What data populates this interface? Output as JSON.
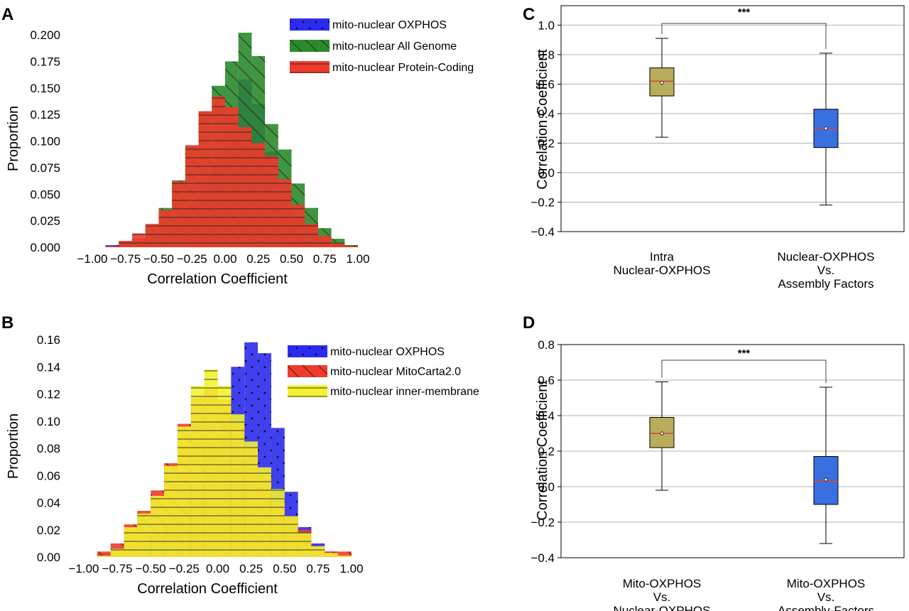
{
  "colors": {
    "oxphos": "#2b2bf0",
    "all_genome": "#2b8a2b",
    "protein_coding": "#f03a2b",
    "mitocarta": "#f03a2b",
    "inner_membrane": "#f2f230",
    "box_c": "#b8ad5a",
    "box_d": "#3a6fe0",
    "median": "#d2452a",
    "grid": "#b0b0b0"
  },
  "chart_data": [
    {
      "panel": "A",
      "type": "bar",
      "subtype": "histogram",
      "xlabel": "Correlation Coefficient",
      "ylabel": "Proportion",
      "xlim": [
        -1.0,
        1.0
      ],
      "ylim": [
        0.0,
        0.2
      ],
      "x_ticks": [
        "−1.00",
        "−0.75",
        "−0.50",
        "−0.25",
        "0.00",
        "0.25",
        "0.50",
        "0.75",
        "1.00"
      ],
      "y_ticks": [
        "0.000",
        "0.025",
        "0.050",
        "0.075",
        "0.100",
        "0.125",
        "0.150",
        "0.175",
        "0.200"
      ],
      "legend": [
        "mito-nuclear OXPHOS",
        "mito-nuclear All Genome",
        "mito-nuclear Protein-Coding"
      ],
      "series": [
        {
          "name": "mito-nuclear OXPHOS",
          "color_key": "oxphos",
          "hatch": "dots",
          "bin_start": -0.9,
          "bin_width": 0.1,
          "values": [
            0.002,
            0.005,
            0.005,
            0.01,
            0.018,
            0.025,
            0.04,
            0.055,
            0.08,
            0.125,
            0.158,
            0.135,
            0.09,
            0.05,
            0.028,
            0.015,
            0.01,
            0.005,
            0.002
          ]
        },
        {
          "name": "mito-nuclear All Genome",
          "color_key": "all_genome",
          "hatch": "diagonal",
          "bin_start": -0.9,
          "bin_width": 0.1,
          "values": [
            0.001,
            0.004,
            0.008,
            0.02,
            0.037,
            0.063,
            0.096,
            0.128,
            0.152,
            0.175,
            0.202,
            0.18,
            0.116,
            0.092,
            0.06,
            0.037,
            0.018,
            0.008,
            0.002
          ]
        },
        {
          "name": "mito-nuclear Protein-Coding",
          "color_key": "protein_coding",
          "hatch": "horizontal",
          "bin_start": -0.9,
          "bin_width": 0.1,
          "values": [
            0.001,
            0.006,
            0.013,
            0.022,
            0.035,
            0.062,
            0.096,
            0.128,
            0.142,
            0.132,
            0.113,
            0.098,
            0.086,
            0.064,
            0.04,
            0.022,
            0.011,
            0.004,
            0.001
          ]
        }
      ]
    },
    {
      "panel": "B",
      "type": "bar",
      "subtype": "histogram",
      "xlabel": "Correlation Coefficient",
      "ylabel": "Proportion",
      "xlim": [
        -1.0,
        1.0
      ],
      "ylim": [
        0.0,
        0.16
      ],
      "x_ticks": [
        "−1.00",
        "−0.75",
        "−0.50",
        "−0.25",
        "0.00",
        "0.25",
        "0.50",
        "0.75",
        "1.00"
      ],
      "y_ticks": [
        "0.00",
        "0.02",
        "0.04",
        "0.06",
        "0.08",
        "0.10",
        "0.12",
        "0.14",
        "0.16"
      ],
      "legend": [
        "mito-nuclear OXPHOS",
        "mito-nuclear MitoCarta2.0",
        "mito-nuclear inner-membrane"
      ],
      "series": [
        {
          "name": "mito-nuclear OXPHOS",
          "color_key": "oxphos",
          "hatch": "dots",
          "bin_start": -0.9,
          "bin_width": 0.1,
          "values": [
            0.002,
            0.004,
            0.006,
            0.01,
            0.016,
            0.024,
            0.036,
            0.052,
            0.08,
            0.102,
            0.14,
            0.158,
            0.15,
            0.095,
            0.048,
            0.022,
            0.01,
            0.004,
            0.001
          ]
        },
        {
          "name": "mito-nuclear MitoCarta2.0",
          "color_key": "mitocarta",
          "hatch": "diagonal",
          "bin_start": -0.9,
          "bin_width": 0.1,
          "values": [
            0.004,
            0.01,
            0.024,
            0.034,
            0.049,
            0.069,
            0.098,
            0.117,
            0.124,
            0.116,
            0.098,
            0.08,
            0.06,
            0.04,
            0.03,
            0.02,
            0.008,
            0.004,
            0.004
          ]
        },
        {
          "name": "mito-nuclear inner-membrane",
          "color_key": "inner_membrane",
          "hatch": "horizontal",
          "bin_start": -0.9,
          "bin_width": 0.1,
          "values": [
            0.001,
            0.006,
            0.022,
            0.032,
            0.045,
            0.067,
            0.096,
            0.126,
            0.138,
            0.126,
            0.105,
            0.085,
            0.066,
            0.05,
            0.03,
            0.018,
            0.008,
            0.003,
            0.001
          ]
        }
      ]
    },
    {
      "panel": "C",
      "type": "box",
      "ylabel": "Correlation Coefficient",
      "ylim": [
        -0.4,
        1.05
      ],
      "y_ticks": [
        "−0.4",
        "−0.2",
        "0.0",
        "0.2",
        "0.4",
        "0.6",
        "0.8",
        "1.0"
      ],
      "grid": true,
      "significance": "***",
      "boxes": [
        {
          "label": [
            "Intra",
            "Nuclear-OXPHOS"
          ],
          "color_key": "box_c",
          "whisker_low": 0.24,
          "q1": 0.52,
          "median": 0.62,
          "q3": 0.71,
          "whisker_high": 0.91,
          "mean": 0.61
        },
        {
          "label": [
            "Nuclear-OXPHOS",
            "Vs.",
            "Assembly Factors"
          ],
          "color_key": "box_d",
          "whisker_low": -0.22,
          "q1": 0.17,
          "median": 0.3,
          "q3": 0.43,
          "whisker_high": 0.81,
          "mean": 0.3
        }
      ]
    },
    {
      "panel": "D",
      "type": "box",
      "ylabel": "Correlation Coefficient",
      "ylim": [
        -0.4,
        0.8
      ],
      "y_ticks": [
        "−0.4",
        "−0.2",
        "0.0",
        "0.2",
        "0.4",
        "0.6",
        "0.8"
      ],
      "grid": true,
      "significance": "***",
      "boxes": [
        {
          "label": [
            "Mito-OXPHOS",
            "Vs.",
            "Nuclear-OXPHOS"
          ],
          "color_key": "box_c",
          "whisker_low": -0.02,
          "q1": 0.22,
          "median": 0.3,
          "q3": 0.39,
          "whisker_high": 0.59,
          "mean": 0.3
        },
        {
          "label": [
            "Mito-OXPHOS",
            "Vs.",
            "Assembly-Factors"
          ],
          "color_key": "box_d",
          "whisker_low": -0.32,
          "q1": -0.1,
          "median": 0.03,
          "q3": 0.17,
          "whisker_high": 0.56,
          "mean": 0.04
        }
      ]
    }
  ]
}
